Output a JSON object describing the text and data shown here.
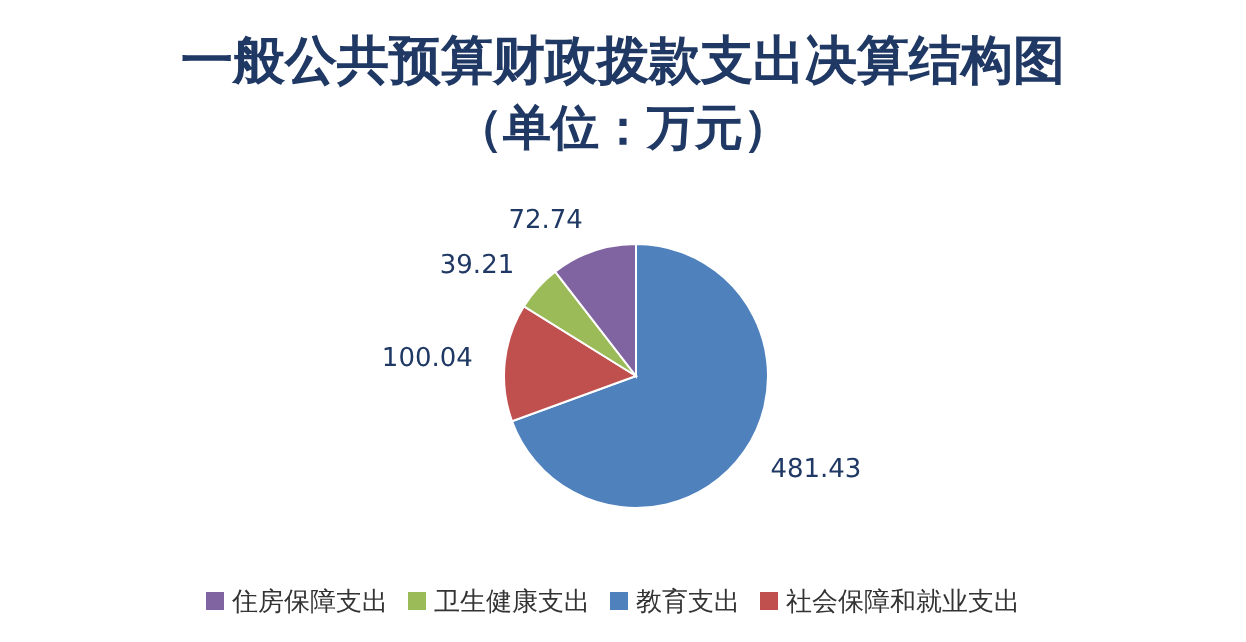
{
  "chart_data": {
    "type": "pie",
    "title": "一般公共预算财政拨款支出决算结构图",
    "subtitle": "（单位：万元）",
    "categories": [
      "教育支出",
      "社会保障和就业支出",
      "卫生健康支出",
      "住房保障支出"
    ],
    "values": [
      481.43,
      100.04,
      39.21,
      72.74
    ],
    "colors": [
      "#4f81bd",
      "#c0504d",
      "#9bbb59",
      "#8064a2"
    ],
    "data_labels": true,
    "legend": "bottom"
  }
}
